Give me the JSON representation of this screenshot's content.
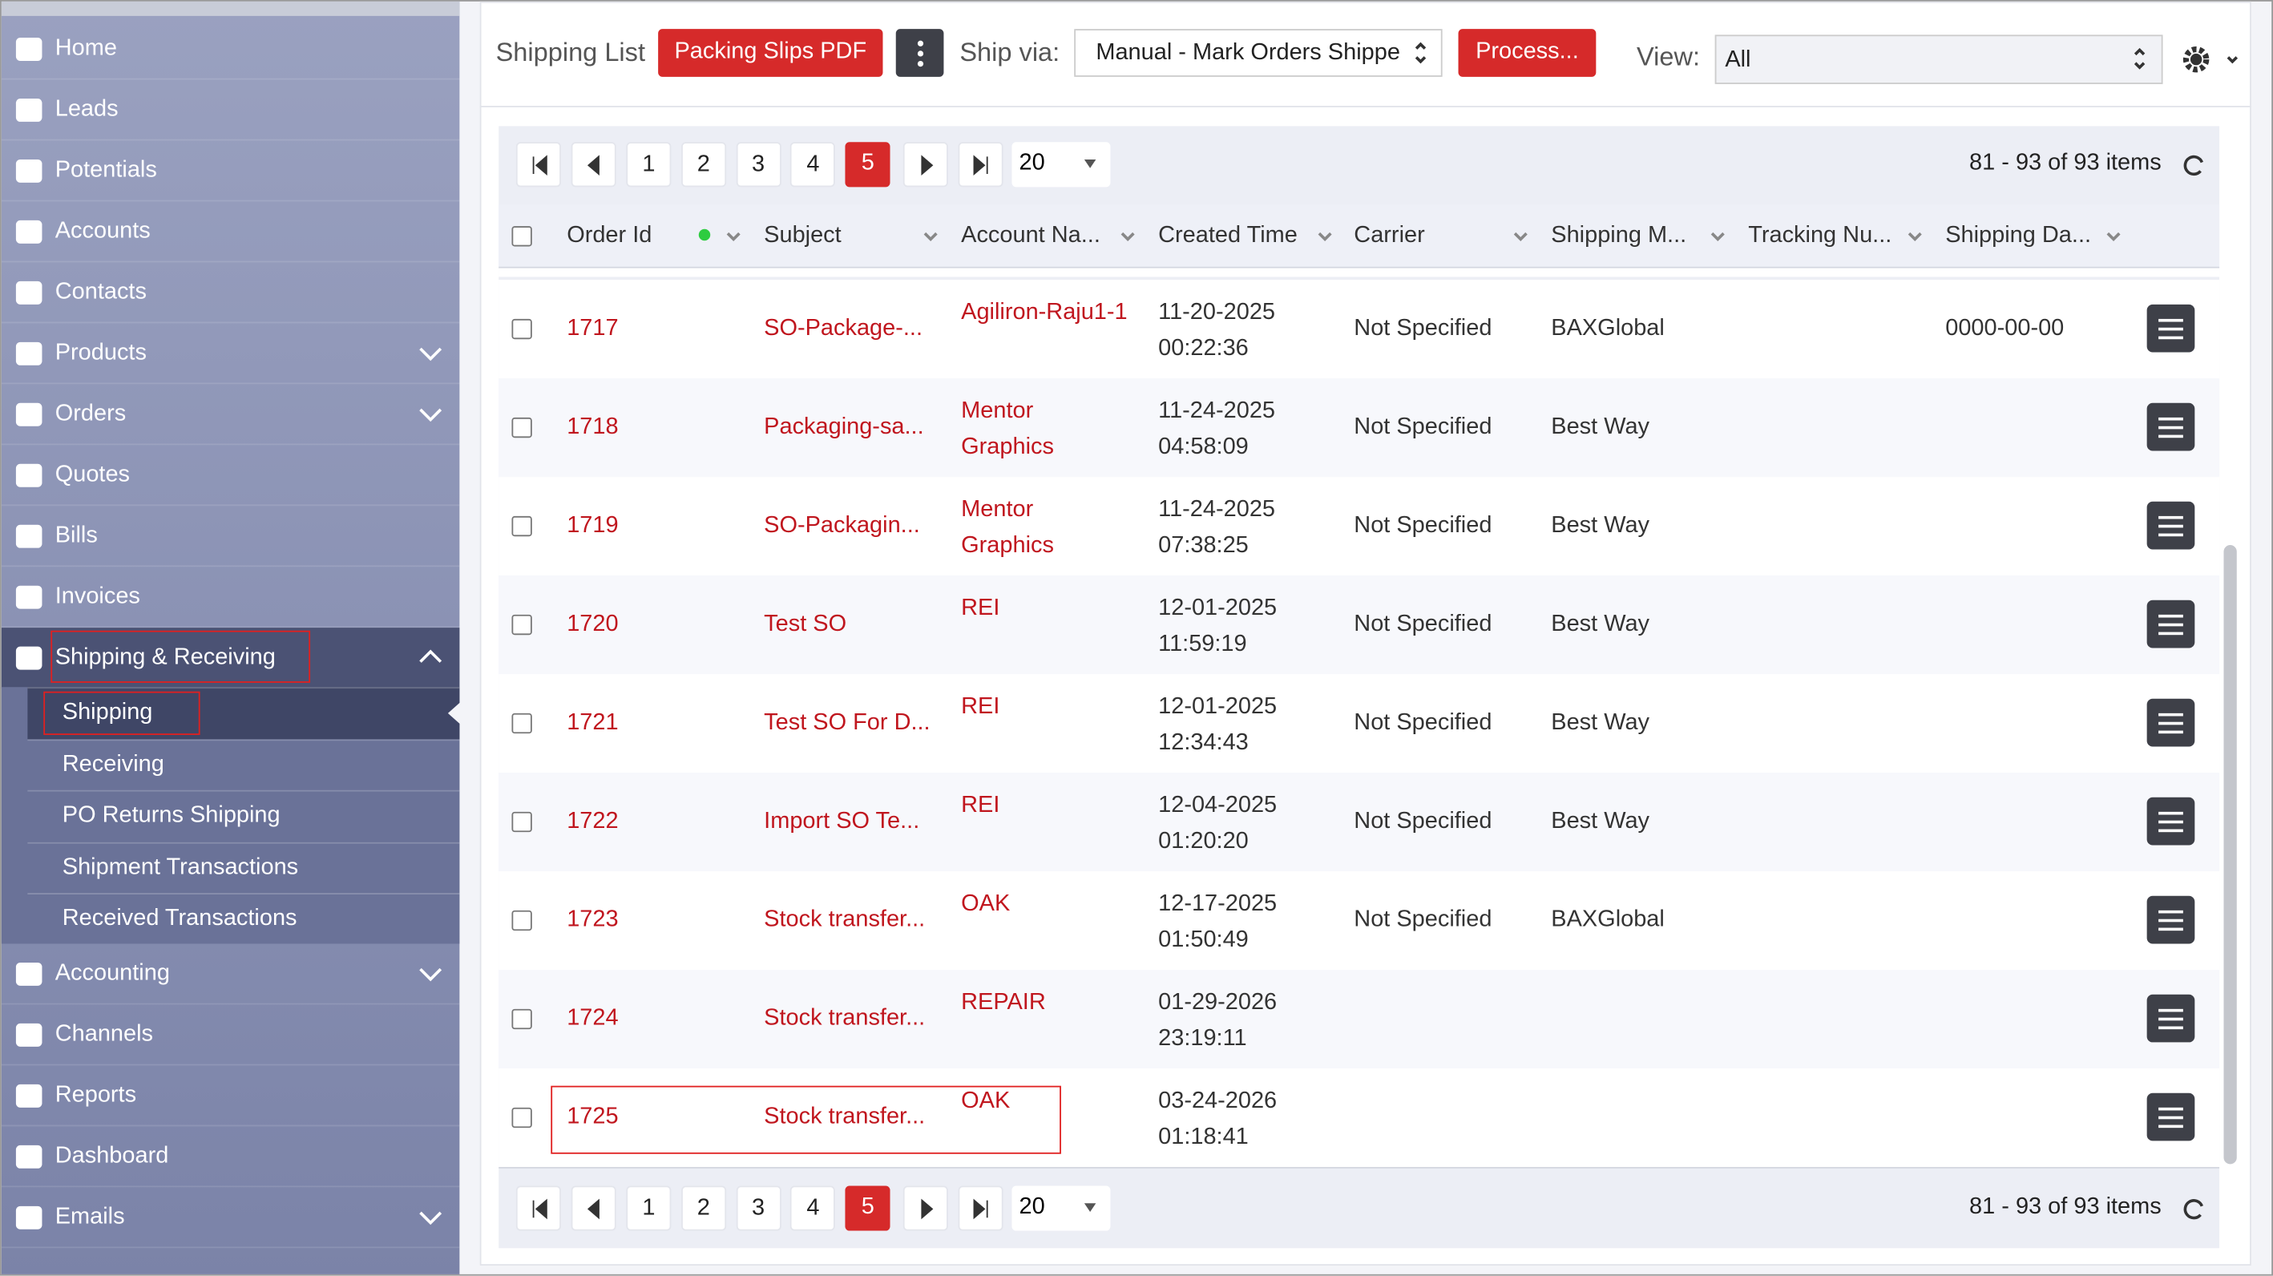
{
  "sidebar": {
    "items": [
      {
        "label": "Home"
      },
      {
        "label": "Leads"
      },
      {
        "label": "Potentials"
      },
      {
        "label": "Accounts"
      },
      {
        "label": "Contacts"
      },
      {
        "label": "Products"
      },
      {
        "label": "Orders"
      },
      {
        "label": "Quotes"
      },
      {
        "label": "Bills"
      },
      {
        "label": "Invoices"
      },
      {
        "label": "Shipping & Receiving",
        "children": [
          "Shipping",
          "Receiving",
          "PO Returns Shipping",
          "Shipment Transactions",
          "Received Transactions"
        ]
      },
      {
        "label": "Accounting"
      },
      {
        "label": "Channels"
      },
      {
        "label": "Reports"
      },
      {
        "label": "Dashboard"
      },
      {
        "label": "Emails"
      }
    ]
  },
  "toolbar": {
    "title": "Shipping List",
    "packing_slips": "Packing Slips PDF",
    "ship_via_label": "Ship via:",
    "ship_via": "Manual - Mark Orders Shippe",
    "process": "Process...",
    "view_label": "View:",
    "view": "All"
  },
  "pagination": {
    "pages": [
      "1",
      "2",
      "3",
      "4",
      "5"
    ],
    "current": "5",
    "page_size": "20",
    "summary": "81 - 93 of 93 items"
  },
  "table": {
    "columns": [
      "Order Id",
      "Subject",
      "Account Na...",
      "Created Time",
      "Carrier",
      "Shipping M...",
      "Tracking Nu...",
      "Shipping Da..."
    ],
    "rows": [
      {
        "id": "1717",
        "subject": "SO-Package-...",
        "account": "Agiliron-Raju1-1",
        "created": "11-20-2025 00:22:36",
        "carrier": "Not Specified",
        "method": "BAXGlobal",
        "date": "0000-00-00"
      },
      {
        "id": "1718",
        "subject": "Packaging-sa...",
        "account": "Mentor Graphics",
        "created": "11-24-2025 04:58:09",
        "carrier": "Not Specified",
        "method": "Best Way"
      },
      {
        "id": "1719",
        "subject": "SO-Packagin...",
        "account": "Mentor Graphics",
        "created": "11-24-2025 07:38:25",
        "carrier": "Not Specified",
        "method": "Best Way"
      },
      {
        "id": "1720",
        "subject": "Test SO",
        "account": "REI",
        "created": "12-01-2025 11:59:19",
        "carrier": "Not Specified",
        "method": "Best Way"
      },
      {
        "id": "1721",
        "subject": "Test SO For D...",
        "account": "REI",
        "created": "12-01-2025 12:34:43",
        "carrier": "Not Specified",
        "method": "Best Way"
      },
      {
        "id": "1722",
        "subject": "Import SO Te...",
        "account": "REI",
        "created": "12-04-2025 01:20:20",
        "carrier": "Not Specified",
        "method": "Best Way"
      },
      {
        "id": "1723",
        "subject": "Stock transfer...",
        "account": "OAK",
        "created": "12-17-2025 01:50:49",
        "carrier": "Not Specified",
        "method": "BAXGlobal"
      },
      {
        "id": "1724",
        "subject": "Stock transfer...",
        "account": "REPAIR",
        "created": "01-29-2026 23:19:11"
      },
      {
        "id": "1725",
        "subject": "Stock transfer...",
        "account": "OAK",
        "created": "03-24-2026 01:18:41"
      }
    ]
  }
}
